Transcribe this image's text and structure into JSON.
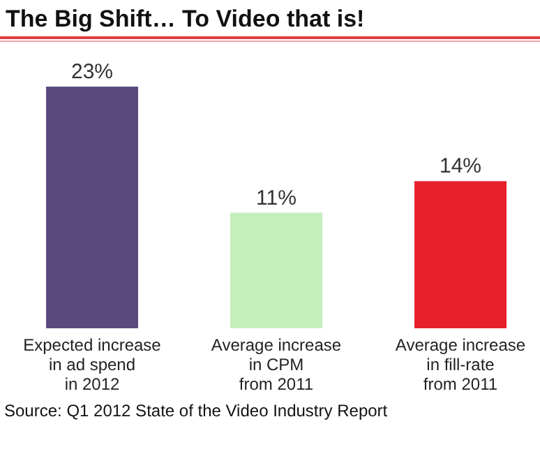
{
  "chart_data": {
    "type": "bar",
    "title": "The Big Shift… To Video that is!",
    "categories": [
      "Expected increase\nin ad spend\nin 2012",
      "Average increase\nin CPM\nfrom 2011",
      "Average increase\nin fill-rate\nfrom 2011"
    ],
    "values": [
      23,
      11,
      14
    ],
    "colors": [
      "#5b4b7d",
      "#c6eebc",
      "#e8202b"
    ],
    "value_labels": [
      "23%",
      "11%",
      "14%"
    ],
    "annotations": [
      "Source: Q1 2012 State of the Video Industry Report"
    ]
  }
}
